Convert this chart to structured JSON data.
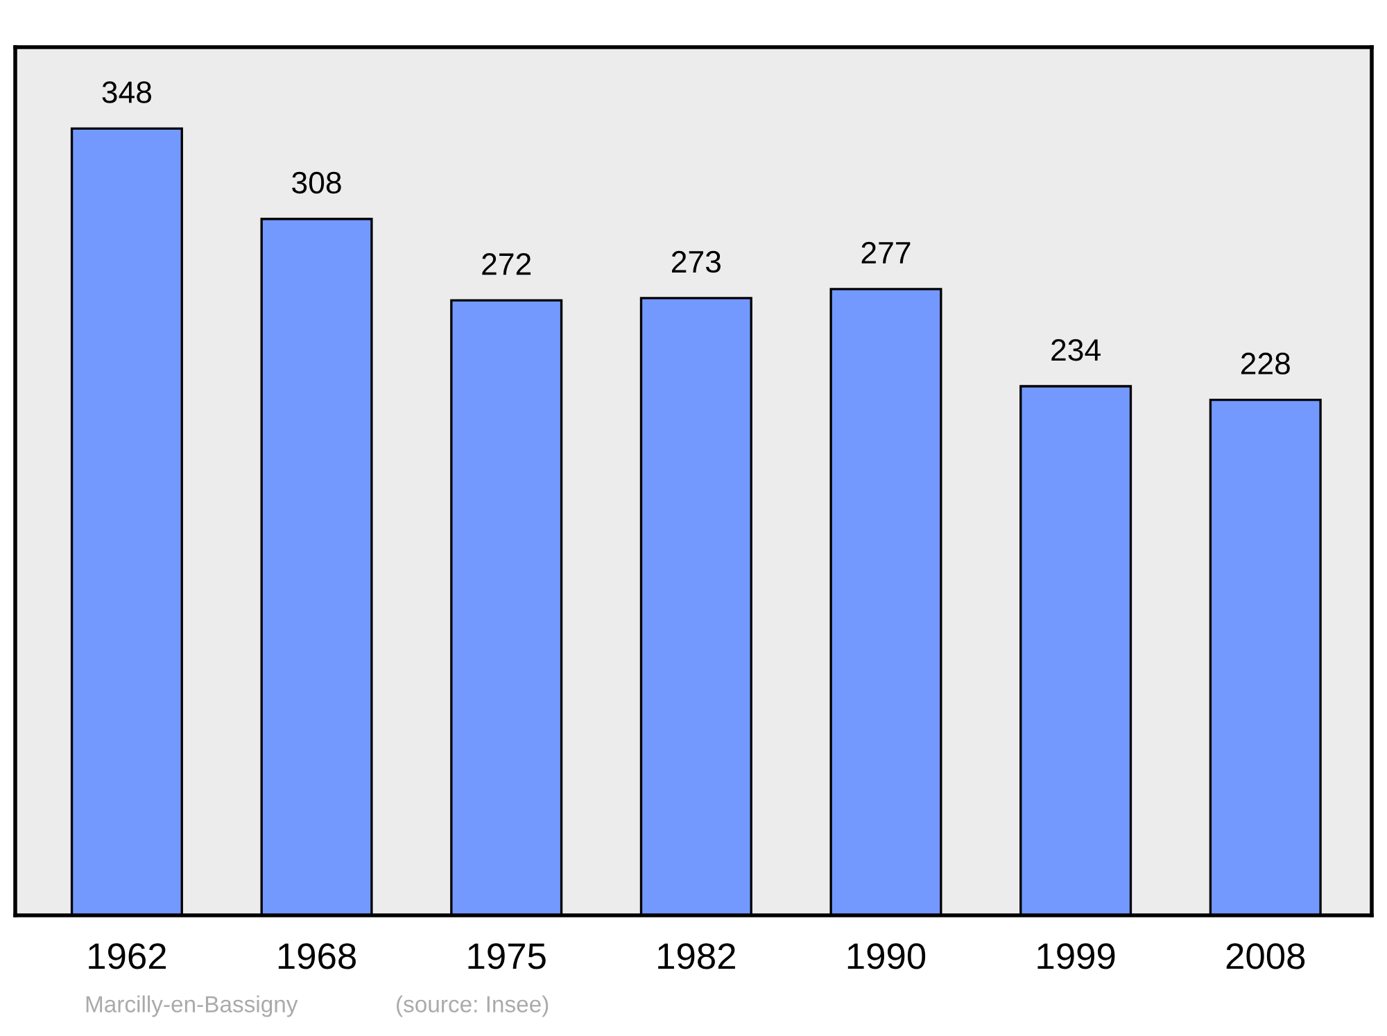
{
  "chart_data": {
    "type": "bar",
    "categories": [
      "1962",
      "1968",
      "1975",
      "1982",
      "1990",
      "1999",
      "2008"
    ],
    "values": [
      348,
      308,
      272,
      273,
      277,
      234,
      228
    ],
    "color": "#7399ff",
    "ylim": [
      0,
      384
    ],
    "tick_labels": "x",
    "data_labels": true,
    "grid": false,
    "legend": false,
    "annotations": [
      "Marcilly-en-Bassigny",
      "(source: Insee)"
    ]
  }
}
